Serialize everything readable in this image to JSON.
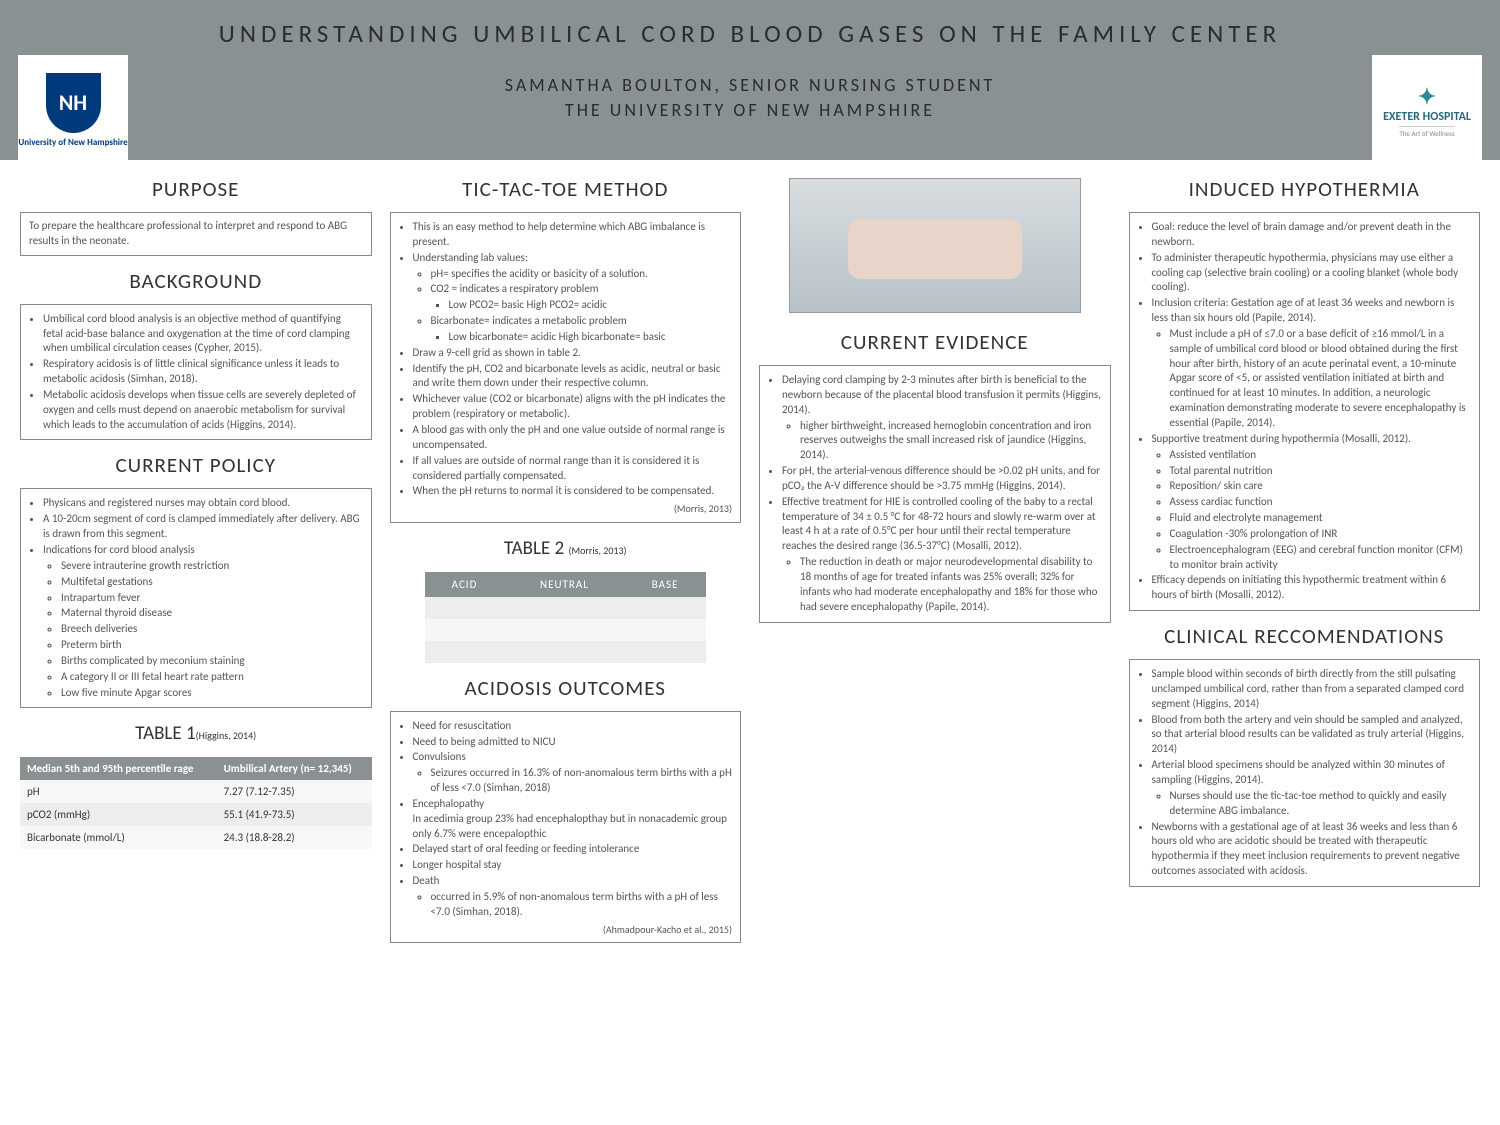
{
  "header": {
    "title": "UNDERSTANDING UMBILICAL CORD BLOOD GASES ON THE FAMILY CENTER",
    "author": "SAMANTHA BOULTON, SENIOR NURSING STUDENT",
    "inst": "THE UNIVERSITY OF NEW HAMPSHIRE",
    "logo_left_top": "NH",
    "logo_left": "University of New Hampshire",
    "logo_right_top": "✦",
    "logo_right": "EXETER HOSPITAL",
    "logo_right_sub": "The Art of Wellness"
  },
  "purpose": {
    "h": "PURPOSE",
    "t": "To prepare the healthcare professional to interpret and respond to ABG results in the neonate."
  },
  "background": {
    "h": "BACKGROUND",
    "items": [
      "Umbilical cord blood analysis is an objective method of quantifying fetal acid-base balance and oxygenation at the time of cord clamping when umbilical circulation ceases (Cypher, 2015).",
      "Respiratory acidosis is of little clinical significance unless it leads to metabolic acidosis (Simhan, 2018).",
      "Metabolic acidosis develops when tissue cells are severely depleted of oxygen and cells must depend on anaerobic metabolism for survival which leads to the accumulation of acids (Higgins, 2014)."
    ]
  },
  "policy": {
    "h": "CURRENT POLICY",
    "lead": [
      "Physicans and registered nurses may obtain cord blood.",
      "A 10-20cm segment of cord is clamped immediately after delivery. ABG is drawn from this segment.",
      "Indications for cord blood analysis"
    ],
    "ind": [
      "Severe intrauterine growth restriction",
      "Multifetal gestations",
      "Intrapartum fever",
      "Maternal thyroid disease",
      "Breech deliveries",
      "Preterm birth",
      "Births complicated by meconium staining",
      "A category II or III fetal heart rate pattern",
      "Low five minute Apgar scores"
    ]
  },
  "table1": {
    "cap": "TABLE 1",
    "cite": "(Higgins, 2014)",
    "h1": "Median 5th and 95th percentile rage",
    "h2": "Umbilical Artery (n= 12,345)",
    "rows": [
      [
        "pH",
        "7.27 (7.12-7.35)"
      ],
      [
        "pCO2 (mmHg)",
        "55.1 (41.9-73.5)"
      ],
      [
        "Bicarbonate (mmol/L)",
        "24.3 (18.8-28.2)"
      ]
    ]
  },
  "ttt": {
    "h": "TIC-TAC-TOE METHOD",
    "items": [
      "This is an easy method to help determine which ABG imbalance is present.",
      "Understanding lab values:"
    ],
    "sub1": [
      "pH= specifies the acidity or basicity of a solution.",
      "CO2 = indicates a respiratory problem"
    ],
    "sub1a": "Low PCO2= basic          High PCO2= acidic",
    "sub2": "Bicarbonate= indicates a metabolic problem",
    "sub2a": "Low bicarbonate= acidic   High bicarbonate= basic",
    "rest": [
      "Draw a 9-cell grid as shown in table 2.",
      "Identify the pH, CO2 and bicarbonate levels as acidic, neutral or basic and write them down under their respective column.",
      "Whichever value (CO2 or bicarbonate) aligns with the pH indicates the problem (respiratory or metabolic).",
      "A blood gas with only the pH and one value outside of normal range is uncompensated.",
      "If all values are outside of normal range than it is considered it is considered partially compensated.",
      "When the pH returns to normal it is considered to be compensated."
    ],
    "cite": "(Morris, 2013)"
  },
  "table2": {
    "cap": "TABLE 2",
    "cite": "(Morris, 2013)",
    "cols": [
      "ACID",
      "NEUTRAL",
      "BASE"
    ]
  },
  "acidosis": {
    "h": "ACIDOSIS OUTCOMES",
    "items": [
      "Need for resuscitation",
      "Need to being admitted to NICU",
      "Convulsions"
    ],
    "conv": "Seizures occurred in 16.3% of non-anomalous term births with a pH of less <7.0 (Simhan, 2018)",
    "enc": "Encephalopathy",
    "enc_t": "In acedimia group 23% had encephalopthay but in nonacademic group only 6.7% were encepalopthic",
    "rest": [
      "Delayed start of oral feeding or feeding intolerance",
      "Longer hospital stay",
      "Death"
    ],
    "death": "occurred in 5.9% of non-anomalous term births with a pH of less <7.0 (Simhan, 2018).",
    "cite": "(Ahmadpour-Kacho et al., 2015)"
  },
  "evidence": {
    "h": "CURRENT EVIDENCE",
    "i1": "Delaying cord clamping by 2-3 minutes after birth is beneficial to the newborn because of the placental blood transfusion it permits (Higgins, 2014).",
    "i1a": "higher birthweight, increased hemoglobin concentration and iron reserves outweighs the small increased risk of jaundice (Higgins, 2014).",
    "i2": "For pH, the arterial-venous difference should be >0.02 pH units, and for pCO₂ the A-V difference should be >3.75 mmHg (Higgins, 2014).",
    "i3": "Effective treatment for HIE is controlled cooling of the baby to a rectal temperature of 34 ± 0.5 °C for 48-72 hours and slowly re-warm over at least 4 h at a rate of 0.5°C per hour until their rectal temperature reaches the desired range (36.5-37°C) (Mosalli, 2012).",
    "i3a": "The reduction in death or major neurodevelopmental disability to 18 months of age for treated infants was 25% overall; 32% for infants who had moderate encephalopathy and 18% for those who had severe encephalopathy (Papile, 2014)."
  },
  "hypo": {
    "h": "INDUCED HYPOTHERMIA",
    "i1": "Goal: reduce the level of brain damage and/or prevent death in the newborn.",
    "i2": "To administer therapeutic hypothermia, physicians may use either a cooling cap (selective brain cooling) or a cooling blanket (whole body cooling).",
    "i3": "Inclusion criteria: Gestation age of at least 36 weeks and newborn is less than six hours old (Papile, 2014).",
    "i3a": "Must include a pH of ≤7.0 or a base deficit of ≥16 mmol/L in a sample of umbilical cord blood or blood obtained during the first hour after birth, history of an acute perinatal event, a 10-minute Apgar score of <5, or assisted ventilation initiated at birth and continued for at least 10 minutes. In addition, a neurologic examination demonstrating moderate to severe encephalopathy is essential (Papile, 2014).",
    "i4": "Supportive treatment during hypothermia (Mosalli, 2012).",
    "sup": [
      "Assisted ventilation",
      "Total parental nutrition",
      "Reposition/ skin care",
      "Assess cardiac function",
      "Fluid and electrolyte management",
      "Coagulation -30% prolongation of INR",
      "Electroencephalogram (EEG) and cerebral function monitor (CFM) to monitor brain activity"
    ],
    "i5": "Efficacy depends on initiating this hypothermic treatment within 6 hours of birth (Mosalli, 2012)."
  },
  "rec": {
    "h": "CLINICAL RECCOMENDATIONS",
    "items": [
      "Sample blood within seconds of birth directly from the still pulsating unclamped umbilical cord, rather than from a separated clamped cord segment (Higgins, 2014)",
      "Blood from both the artery and vein should be sampled and analyzed, so that arterial blood results can be validated as truly arterial (Higgins, 2014)",
      "Arterial blood specimens should be analyzed within 30 minutes of sampling (Higgins, 2014)."
    ],
    "sub": "Nurses should use the tic-tac-toe method to quickly and easily determine ABG imbalance.",
    "last": "Newborns with a gestational age of at least 36 weeks and less than 6 hours old who are acidotic should be treated with therapeutic hypothermia if they meet inclusion requirements to prevent negative outcomes associated with acidosis."
  },
  "colors": {
    "header_bg": "#8a9193",
    "text": "#555555"
  }
}
